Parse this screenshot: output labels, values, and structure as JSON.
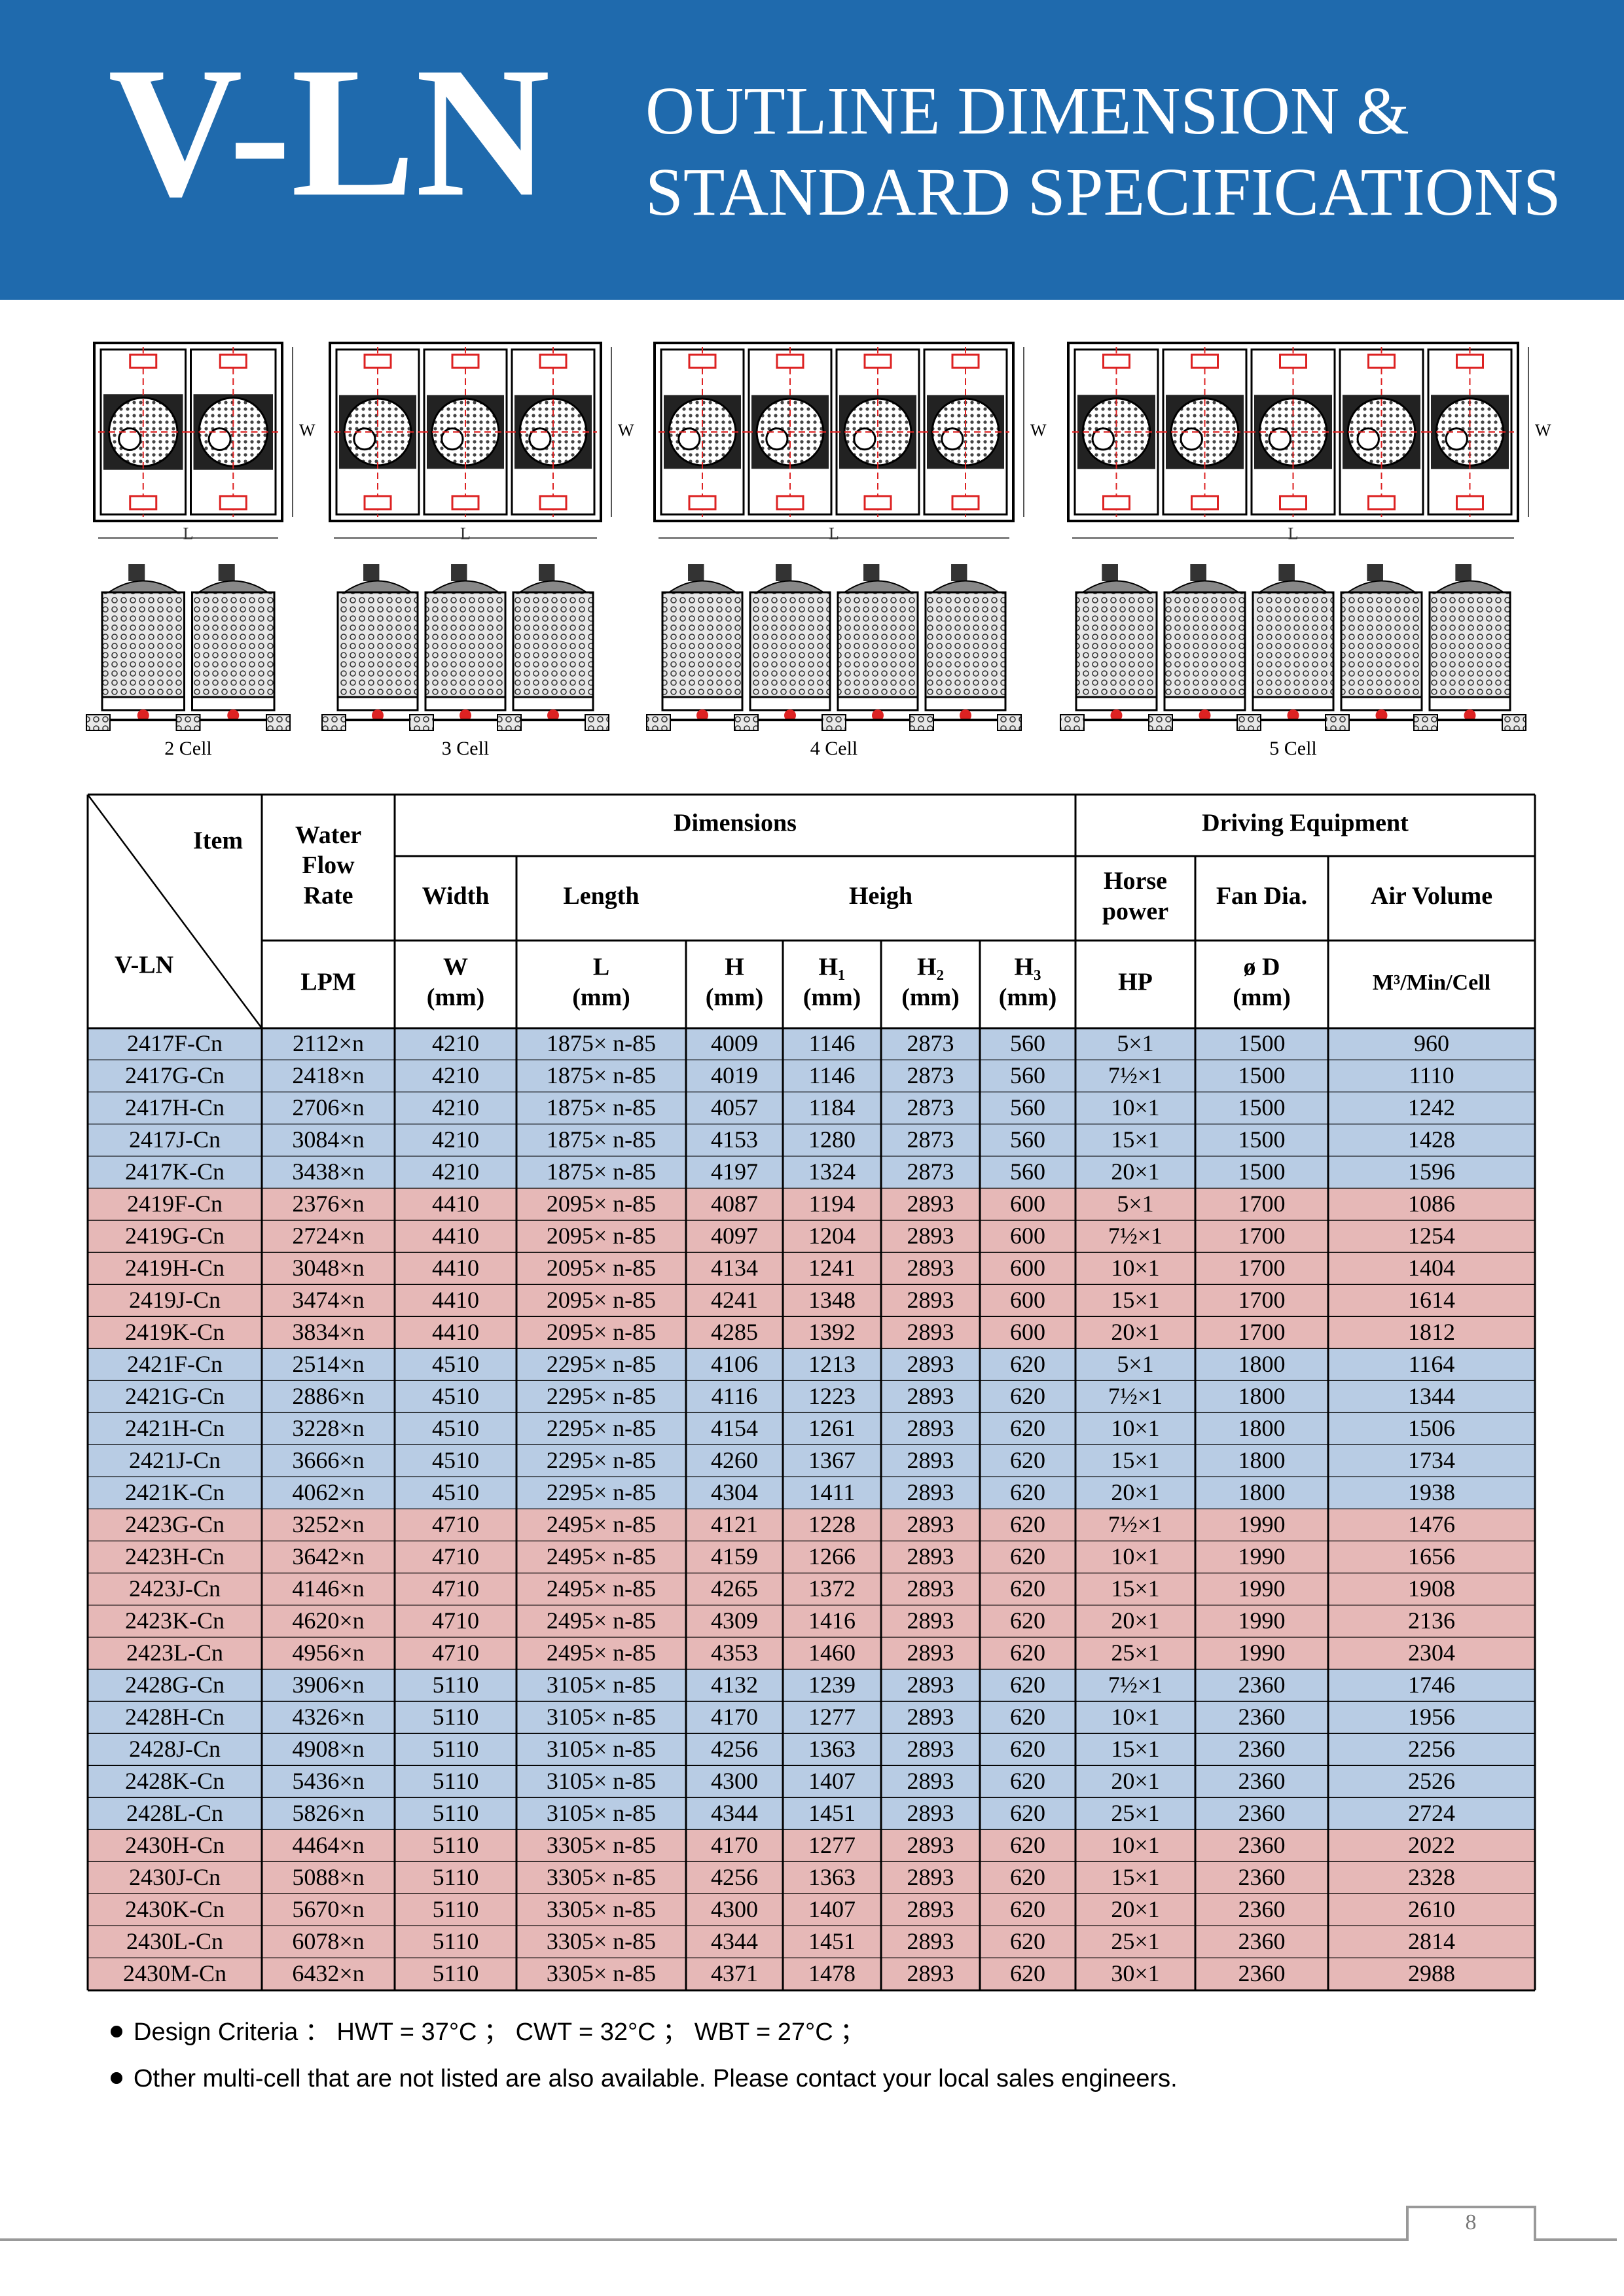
{
  "header": {
    "brand": "V-LN",
    "title_lines": [
      "OUTLINE DIMENSION &",
      "STANDARD SPECIFICATIONS"
    ]
  },
  "drawings": {
    "w_label": "W",
    "l_label": "L",
    "cells": [
      "2 Cell",
      "3 Cell",
      "4 Cell",
      "5 Cell"
    ]
  },
  "table": {
    "head": {
      "item": "Item",
      "model": "V-LN",
      "flow": [
        "Water",
        "Flow",
        "Rate"
      ],
      "dimensions": "Dimensions",
      "driving": "Driving Equipment",
      "width": "Width",
      "length": "Length",
      "height": "Heigh",
      "hp": [
        "Horse",
        "power"
      ],
      "fan": "Fan Dia.",
      "air": "Air Volume",
      "units": [
        [
          "LPM"
        ],
        [
          "W",
          "(mm)"
        ],
        [
          "L",
          "(mm)"
        ],
        [
          "H",
          "(mm)"
        ],
        [
          "H₁",
          "(mm)"
        ],
        [
          "H₂",
          "(mm)"
        ],
        [
          "H₃",
          "(mm)"
        ],
        [
          "HP"
        ],
        [
          "ø D",
          "(mm)"
        ],
        [
          "M³/Min/Cell"
        ]
      ]
    },
    "groups": [
      {
        "color": "#b8cce4",
        "rows": [
          [
            "2417F-Cn",
            "2112×n",
            "4210",
            "1875× n-85",
            "4009",
            "1146",
            "2873",
            "560",
            "5×1",
            "1500",
            "960"
          ],
          [
            "2417G-Cn",
            "2418×n",
            "4210",
            "1875× n-85",
            "4019",
            "1146",
            "2873",
            "560",
            "7½×1",
            "1500",
            "1110"
          ],
          [
            "2417H-Cn",
            "2706×n",
            "4210",
            "1875× n-85",
            "4057",
            "1184",
            "2873",
            "560",
            "10×1",
            "1500",
            "1242"
          ],
          [
            "2417J-Cn",
            "3084×n",
            "4210",
            "1875× n-85",
            "4153",
            "1280",
            "2873",
            "560",
            "15×1",
            "1500",
            "1428"
          ],
          [
            "2417K-Cn",
            "3438×n",
            "4210",
            "1875× n-85",
            "4197",
            "1324",
            "2873",
            "560",
            "20×1",
            "1500",
            "1596"
          ]
        ]
      },
      {
        "color": "#e6b8b7",
        "rows": [
          [
            "2419F-Cn",
            "2376×n",
            "4410",
            "2095× n-85",
            "4087",
            "1194",
            "2893",
            "600",
            "5×1",
            "1700",
            "1086"
          ],
          [
            "2419G-Cn",
            "2724×n",
            "4410",
            "2095× n-85",
            "4097",
            "1204",
            "2893",
            "600",
            "7½×1",
            "1700",
            "1254"
          ],
          [
            "2419H-Cn",
            "3048×n",
            "4410",
            "2095× n-85",
            "4134",
            "1241",
            "2893",
            "600",
            "10×1",
            "1700",
            "1404"
          ],
          [
            "2419J-Cn",
            "3474×n",
            "4410",
            "2095× n-85",
            "4241",
            "1348",
            "2893",
            "600",
            "15×1",
            "1700",
            "1614"
          ],
          [
            "2419K-Cn",
            "3834×n",
            "4410",
            "2095× n-85",
            "4285",
            "1392",
            "2893",
            "600",
            "20×1",
            "1700",
            "1812"
          ]
        ]
      },
      {
        "color": "#b8cce4",
        "rows": [
          [
            "2421F-Cn",
            "2514×n",
            "4510",
            "2295× n-85",
            "4106",
            "1213",
            "2893",
            "620",
            "5×1",
            "1800",
            "1164"
          ],
          [
            "2421G-Cn",
            "2886×n",
            "4510",
            "2295× n-85",
            "4116",
            "1223",
            "2893",
            "620",
            "7½×1",
            "1800",
            "1344"
          ],
          [
            "2421H-Cn",
            "3228×n",
            "4510",
            "2295× n-85",
            "4154",
            "1261",
            "2893",
            "620",
            "10×1",
            "1800",
            "1506"
          ],
          [
            "2421J-Cn",
            "3666×n",
            "4510",
            "2295× n-85",
            "4260",
            "1367",
            "2893",
            "620",
            "15×1",
            "1800",
            "1734"
          ],
          [
            "2421K-Cn",
            "4062×n",
            "4510",
            "2295× n-85",
            "4304",
            "1411",
            "2893",
            "620",
            "20×1",
            "1800",
            "1938"
          ]
        ]
      },
      {
        "color": "#e6b8b7",
        "rows": [
          [
            "2423G-Cn",
            "3252×n",
            "4710",
            "2495× n-85",
            "4121",
            "1228",
            "2893",
            "620",
            "7½×1",
            "1990",
            "1476"
          ],
          [
            "2423H-Cn",
            "3642×n",
            "4710",
            "2495× n-85",
            "4159",
            "1266",
            "2893",
            "620",
            "10×1",
            "1990",
            "1656"
          ],
          [
            "2423J-Cn",
            "4146×n",
            "4710",
            "2495× n-85",
            "4265",
            "1372",
            "2893",
            "620",
            "15×1",
            "1990",
            "1908"
          ],
          [
            "2423K-Cn",
            "4620×n",
            "4710",
            "2495× n-85",
            "4309",
            "1416",
            "2893",
            "620",
            "20×1",
            "1990",
            "2136"
          ],
          [
            "2423L-Cn",
            "4956×n",
            "4710",
            "2495× n-85",
            "4353",
            "1460",
            "2893",
            "620",
            "25×1",
            "1990",
            "2304"
          ]
        ]
      },
      {
        "color": "#b8cce4",
        "rows": [
          [
            "2428G-Cn",
            "3906×n",
            "5110",
            "3105× n-85",
            "4132",
            "1239",
            "2893",
            "620",
            "7½×1",
            "2360",
            "1746"
          ],
          [
            "2428H-Cn",
            "4326×n",
            "5110",
            "3105× n-85",
            "4170",
            "1277",
            "2893",
            "620",
            "10×1",
            "2360",
            "1956"
          ],
          [
            "2428J-Cn",
            "4908×n",
            "5110",
            "3105× n-85",
            "4256",
            "1363",
            "2893",
            "620",
            "15×1",
            "2360",
            "2256"
          ],
          [
            "2428K-Cn",
            "5436×n",
            "5110",
            "3105× n-85",
            "4300",
            "1407",
            "2893",
            "620",
            "20×1",
            "2360",
            "2526"
          ],
          [
            "2428L-Cn",
            "5826×n",
            "5110",
            "3105× n-85",
            "4344",
            "1451",
            "2893",
            "620",
            "25×1",
            "2360",
            "2724"
          ]
        ]
      },
      {
        "color": "#e6b8b7",
        "rows": [
          [
            "2430H-Cn",
            "4464×n",
            "5110",
            "3305× n-85",
            "4170",
            "1277",
            "2893",
            "620",
            "10×1",
            "2360",
            "2022"
          ],
          [
            "2430J-Cn",
            "5088×n",
            "5110",
            "3305× n-85",
            "4256",
            "1363",
            "2893",
            "620",
            "15×1",
            "2360",
            "2328"
          ],
          [
            "2430K-Cn",
            "5670×n",
            "5110",
            "3305× n-85",
            "4300",
            "1407",
            "2893",
            "620",
            "20×1",
            "2360",
            "2610"
          ],
          [
            "2430L-Cn",
            "6078×n",
            "5110",
            "3305× n-85",
            "4344",
            "1451",
            "2893",
            "620",
            "25×1",
            "2360",
            "2814"
          ],
          [
            "2430M-Cn",
            "6432×n",
            "5110",
            "3305× n-85",
            "4371",
            "1478",
            "2893",
            "620",
            "30×1",
            "2360",
            "2988"
          ]
        ]
      }
    ]
  },
  "notes": [
    "Design Criteria ：  HWT = 37°C ；   CWT = 32°C ；   WBT = 27°C ；",
    "Other multi-cell that are not listed are also available. Please contact your local sales engineers."
  ],
  "page_number": "8"
}
